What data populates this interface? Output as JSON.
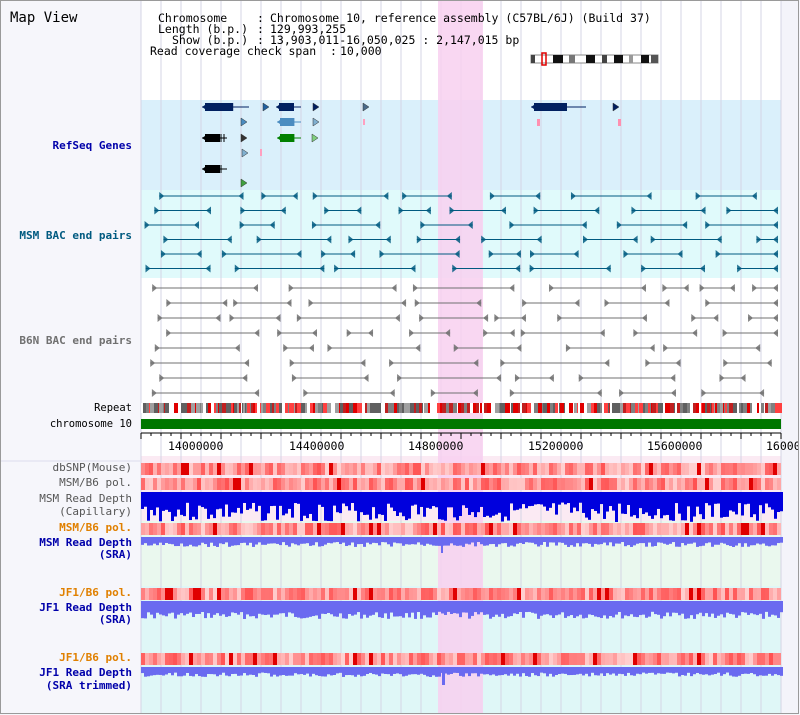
{
  "page": {
    "title": "Map View",
    "info": {
      "chromosome_key": "Chromosome",
      "chromosome_val": "Chromosome 10, reference assembly (C57BL/6J) (Build 37)",
      "length_key": "Length (b.p.)",
      "length_val": "129,993,255",
      "show_key": "Show (b.p.)",
      "show_val": "13,903,011-16,050,025 : 2,147,015 bp",
      "coverage_key": "Read coverage check span",
      "coverage_val": "10,000"
    }
  },
  "tracks": {
    "refseq": "RefSeq Genes",
    "msm_bac": "MSM BAC end pairs",
    "b6n_bac": "B6N BAC end pairs",
    "repeat": "Repeat",
    "chromosome": "chromosome 10",
    "dbsnp": "dbSNP(Mouse)",
    "msm_b6_pol_1": "MSM/B6 pol.",
    "msm_depth_cap_1": "MSM Read Depth",
    "msm_depth_cap_2": "(Capillary)",
    "msm_b6_pol_2": "MSM/B6 pol.",
    "msm_depth_sra_1": "MSM Read Depth",
    "msm_depth_sra_2": "(SRA)",
    "jf1_b6_pol_1": "JF1/B6 pol.",
    "jf1_depth_1": "JF1 Read Depth",
    "jf1_depth_2": "(SRA)",
    "jf1_b6_pol_2": "JF1/B6 pol.",
    "jf1_trim_1": "JF1 Read Depth",
    "jf1_trim_2": "(SRA trimmed)"
  },
  "axis": {
    "ticks": [
      "14000000",
      "14400000",
      "14800000",
      "15200000",
      "15600000",
      "16000"
    ]
  },
  "colors": {
    "refseq_bg": "#daf0fb",
    "bac_bg": "#e0fafb",
    "highlight": "#f8d0f0",
    "chrom_green": "#007700",
    "gene_navy": "#002060",
    "gene_blue": "#4a8cc0",
    "gene_green": "#008000",
    "msm_line": "#005a80",
    "b6n_line": "#707070",
    "depth_blue": "#0000dd",
    "depth_light": "#6a6af0",
    "label_blue": "#0000aa",
    "label_teal": "#005a80",
    "label_orange": "#e08000"
  }
}
